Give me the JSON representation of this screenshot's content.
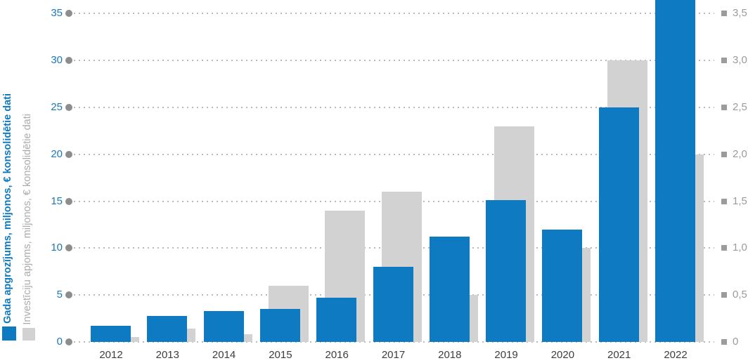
{
  "chart_data": {
    "type": "bar",
    "title": "",
    "categories": [
      "2012",
      "2013",
      "2014",
      "2015",
      "2016",
      "2017",
      "2018",
      "2019",
      "2020",
      "2021",
      "2022"
    ],
    "series": [
      {
        "name": "Gada apgrozījums, miljonos, € konsolidētie dati",
        "axis": "left",
        "color": "#0d7ac1",
        "values": [
          1.7,
          2.8,
          3.3,
          3.5,
          4.7,
          8.0,
          11.2,
          15.1,
          12.0,
          25.0,
          36.5
        ]
      },
      {
        "name": "Investīciju apjoms, miljonos, € konsolidētie dati",
        "axis": "right",
        "color": "#d2d2d2",
        "values": [
          0.05,
          0.14,
          0.08,
          0.6,
          1.4,
          1.6,
          0.5,
          2.3,
          1.0,
          3.0,
          2.0
        ]
      }
    ],
    "left_axis": {
      "ticks": [
        "0",
        "5",
        "10",
        "15",
        "20",
        "25",
        "30",
        "35"
      ],
      "min": 0,
      "max": 35,
      "tick_color": "#1d78bb"
    },
    "right_axis": {
      "ticks": [
        "0",
        "0,5",
        "1,0",
        "1,5",
        "2,0",
        "2,5",
        "3,0",
        "3,5"
      ],
      "min": 0,
      "max": 3.5,
      "tick_color": "#9b9b9b"
    },
    "grid": true,
    "grid_style": "dotted",
    "legend_position": "left-vertical"
  },
  "legend": {
    "turnover_label": "Gada apgrozījums, miljonos, € konsolidētie dati",
    "investment_label": "Investīciju apjoms, miljonos, € konsolidētie dati"
  },
  "colors": {
    "series_blue": "#0d7ac1",
    "series_gray": "#d2d2d2",
    "left_tick_text": "#1d78bb",
    "right_tick_text": "#9b9b9b",
    "year_label_text": "#3e3e3e",
    "grid_dot": "#b9b9b9",
    "left_axis_dot": "#8d8d8d",
    "right_axis_square": "#9b9b9b",
    "legend_gray_text": "#a9abad"
  }
}
